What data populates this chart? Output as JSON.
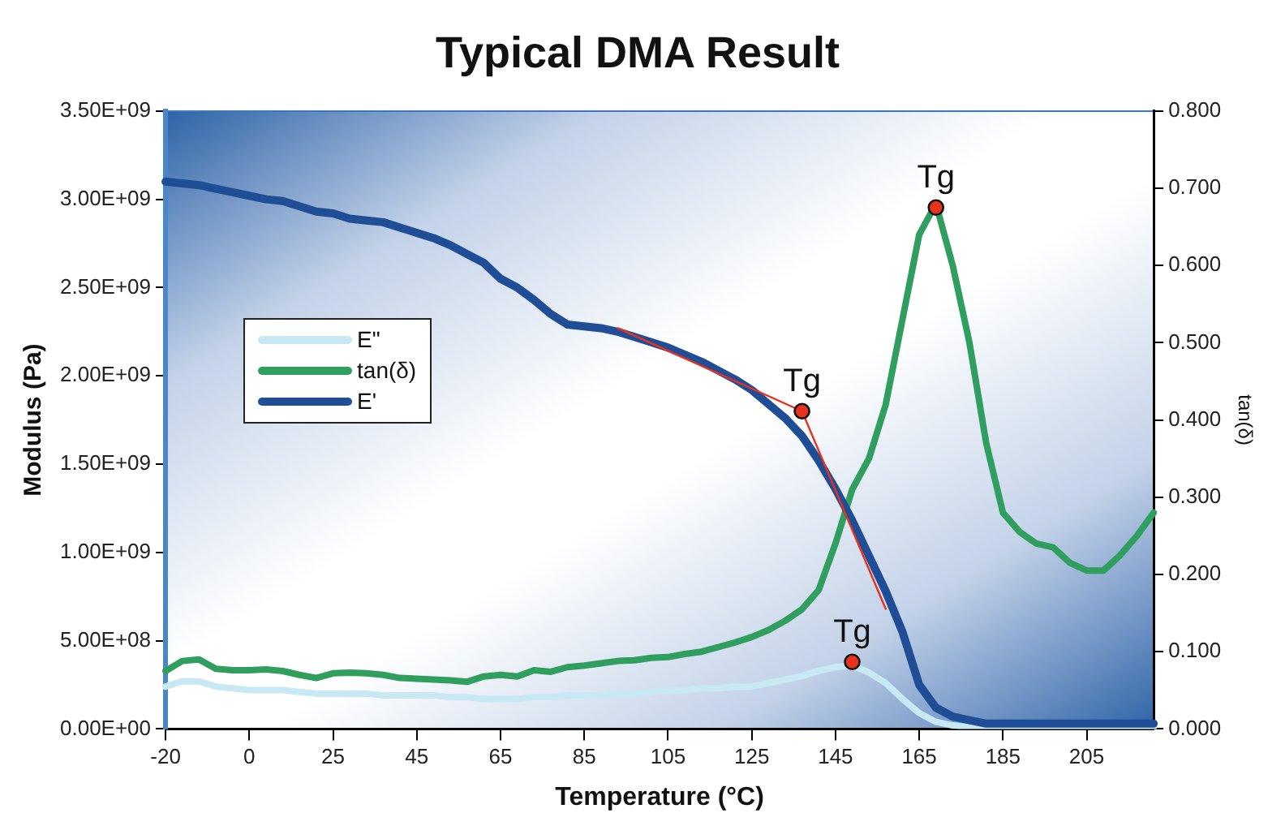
{
  "chart_data": {
    "type": "line",
    "title": "Typical DMA Result",
    "xlabel": "Temperature (°C)",
    "ylabel": "Modulus (Pa)",
    "y2label": "tan(δ)",
    "categories": [
      "-20",
      null,
      null,
      null,
      null,
      "0",
      null,
      null,
      null,
      null,
      "25",
      null,
      null,
      null,
      null,
      "45",
      null,
      null,
      null,
      null,
      "65",
      null,
      null,
      null,
      null,
      "85",
      null,
      null,
      null,
      null,
      "105",
      null,
      null,
      null,
      null,
      "125",
      null,
      null,
      null,
      null,
      "145",
      null,
      null,
      null,
      null,
      "165",
      null,
      null,
      null,
      null,
      "185",
      null,
      null,
      null,
      null,
      "205",
      null,
      null,
      null,
      null
    ],
    "ylim": [
      0,
      3500000000
    ],
    "yticks": [
      {
        "value": 0,
        "label": "0.00E+00"
      },
      {
        "value": 500000000,
        "label": "5.00E+08"
      },
      {
        "value": 1000000000,
        "label": "1.00E+09"
      },
      {
        "value": 1500000000,
        "label": "1.50E+09"
      },
      {
        "value": 2000000000,
        "label": "2.00E+09"
      },
      {
        "value": 2500000000,
        "label": "2.50E+09"
      },
      {
        "value": 3000000000,
        "label": "3.00E+09"
      },
      {
        "value": 3500000000,
        "label": "3.50E+09"
      }
    ],
    "y2lim": [
      0,
      0.8
    ],
    "y2ticks": [
      {
        "value": 0,
        "label": "0.000"
      },
      {
        "value": 0.1,
        "label": "0.100"
      },
      {
        "value": 0.2,
        "label": "0.200"
      },
      {
        "value": 0.3,
        "label": "0.300"
      },
      {
        "value": 0.4,
        "label": "0.400"
      },
      {
        "value": 0.5,
        "label": "0.500"
      },
      {
        "value": 0.6,
        "label": "0.600"
      },
      {
        "value": 0.7,
        "label": "0.700"
      },
      {
        "value": 0.8,
        "label": "0.800"
      }
    ],
    "grid": false,
    "legend": "left",
    "marker": "none",
    "series": [
      {
        "name": "E\"",
        "color": "#c8e9f4",
        "values": [
          240000000,
          270000000,
          270000000,
          240000000,
          230000000,
          220000000,
          220000000,
          220000000,
          210000000,
          200000000,
          200000000,
          200000000,
          200000000,
          190000000,
          190000000,
          190000000,
          190000000,
          180000000,
          180000000,
          170000000,
          170000000,
          170000000,
          180000000,
          180000000,
          190000000,
          190000000,
          190000000,
          200000000,
          200000000,
          210000000,
          220000000,
          220000000,
          230000000,
          230000000,
          240000000,
          240000000,
          260000000,
          280000000,
          300000000,
          330000000,
          350000000,
          360000000,
          320000000,
          260000000,
          170000000,
          90000000,
          40000000,
          20000000,
          10000000,
          10000000,
          10000000,
          10000000,
          10000000,
          10000000,
          10000000,
          10000000,
          10000000,
          10000000,
          10000000,
          10000000
        ]
      },
      {
        "name": "tan(δ)",
        "color": "#2f9e5e",
        "axis": "y2",
        "values": [
          0.075,
          0.088,
          0.09,
          0.078,
          0.076,
          0.076,
          0.077,
          0.075,
          0.07,
          0.066,
          0.072,
          0.073,
          0.072,
          0.07,
          0.066,
          0.065,
          0.064,
          0.063,
          0.061,
          0.068,
          0.07,
          0.068,
          0.076,
          0.074,
          0.08,
          0.082,
          0.085,
          0.088,
          0.089,
          0.092,
          0.093,
          0.097,
          0.1,
          0.106,
          0.112,
          0.119,
          0.128,
          0.14,
          0.155,
          0.18,
          0.24,
          0.31,
          0.35,
          0.42,
          0.53,
          0.64,
          0.68,
          0.6,
          0.5,
          0.37,
          0.28,
          0.255,
          0.24,
          0.235,
          0.215,
          0.205,
          0.205,
          0.225,
          0.25,
          0.28
        ]
      },
      {
        "name": "E'",
        "color": "#1f4e97",
        "values": [
          3100000000,
          3090000000,
          3080000000,
          3060000000,
          3040000000,
          3020000000,
          3000000000,
          2990000000,
          2960000000,
          2930000000,
          2920000000,
          2890000000,
          2880000000,
          2870000000,
          2840000000,
          2810000000,
          2780000000,
          2740000000,
          2690000000,
          2640000000,
          2550000000,
          2500000000,
          2430000000,
          2350000000,
          2290000000,
          2280000000,
          2270000000,
          2250000000,
          2220000000,
          2190000000,
          2160000000,
          2120000000,
          2080000000,
          2030000000,
          1980000000,
          1920000000,
          1840000000,
          1760000000,
          1660000000,
          1520000000,
          1360000000,
          1180000000,
          980000000,
          780000000,
          550000000,
          250000000,
          120000000,
          70000000,
          50000000,
          30000000,
          30000000,
          30000000,
          30000000,
          30000000,
          30000000,
          30000000,
          30000000,
          30000000,
          30000000,
          30000000
        ]
      },
      {
        "color": "#e8321e",
        "values": [
          null,
          null,
          null,
          null,
          null,
          null,
          null,
          null,
          null,
          null,
          null,
          null,
          null,
          null,
          null,
          null,
          null,
          null,
          null,
          null,
          null,
          null,
          null,
          null,
          null,
          null,
          null,
          2270000000,
          null,
          null,
          null,
          null,
          null,
          null,
          null,
          null,
          null,
          null,
          1800000000,
          null,
          null,
          null,
          null,
          680000000,
          null,
          null,
          null,
          null,
          null,
          null,
          null,
          null,
          null,
          null,
          null,
          null,
          null,
          null,
          null,
          null
        ]
      },
      {
        "color": "#e8321e",
        "type": "scatter",
        "marker": "circle",
        "values": [
          null,
          null,
          null,
          null,
          null,
          null,
          null,
          null,
          null,
          null,
          null,
          null,
          null,
          null,
          null,
          null,
          null,
          null,
          null,
          null,
          null,
          null,
          null,
          null,
          null,
          null,
          null,
          null,
          null,
          null,
          null,
          null,
          null,
          null,
          null,
          null,
          null,
          null,
          1800000000,
          null,
          null,
          null,
          null,
          null,
          null,
          null,
          null,
          null,
          null,
          null,
          null,
          null,
          null,
          null,
          null,
          null,
          null,
          null,
          null,
          null
        ]
      },
      {
        "color": "#e8321e",
        "type": "scatter",
        "marker": "circle",
        "values": [
          null,
          null,
          null,
          null,
          null,
          null,
          null,
          null,
          null,
          null,
          null,
          null,
          null,
          null,
          null,
          null,
          null,
          null,
          null,
          null,
          null,
          null,
          null,
          null,
          null,
          null,
          null,
          null,
          null,
          null,
          null,
          null,
          null,
          null,
          null,
          null,
          null,
          null,
          null,
          null,
          null,
          380000000,
          null,
          null,
          null,
          null,
          null,
          null,
          null,
          null,
          null,
          null,
          null,
          null,
          null,
          null,
          null,
          null,
          null,
          null
        ]
      },
      {
        "color": "#e8321e",
        "type": "scatter",
        "marker": "circle",
        "axis": "y2",
        "values": [
          null,
          null,
          null,
          null,
          null,
          null,
          null,
          null,
          null,
          null,
          null,
          null,
          null,
          null,
          null,
          null,
          null,
          null,
          null,
          null,
          null,
          null,
          null,
          null,
          null,
          null,
          null,
          null,
          null,
          null,
          null,
          null,
          null,
          null,
          null,
          null,
          null,
          null,
          null,
          null,
          null,
          null,
          null,
          null,
          null,
          null,
          0.675,
          null,
          null,
          null,
          null,
          null,
          null,
          null,
          null,
          null,
          null,
          null,
          null,
          null
        ]
      }
    ],
    "annotations": [
      "Tg",
      "Tg",
      "Tg"
    ]
  }
}
